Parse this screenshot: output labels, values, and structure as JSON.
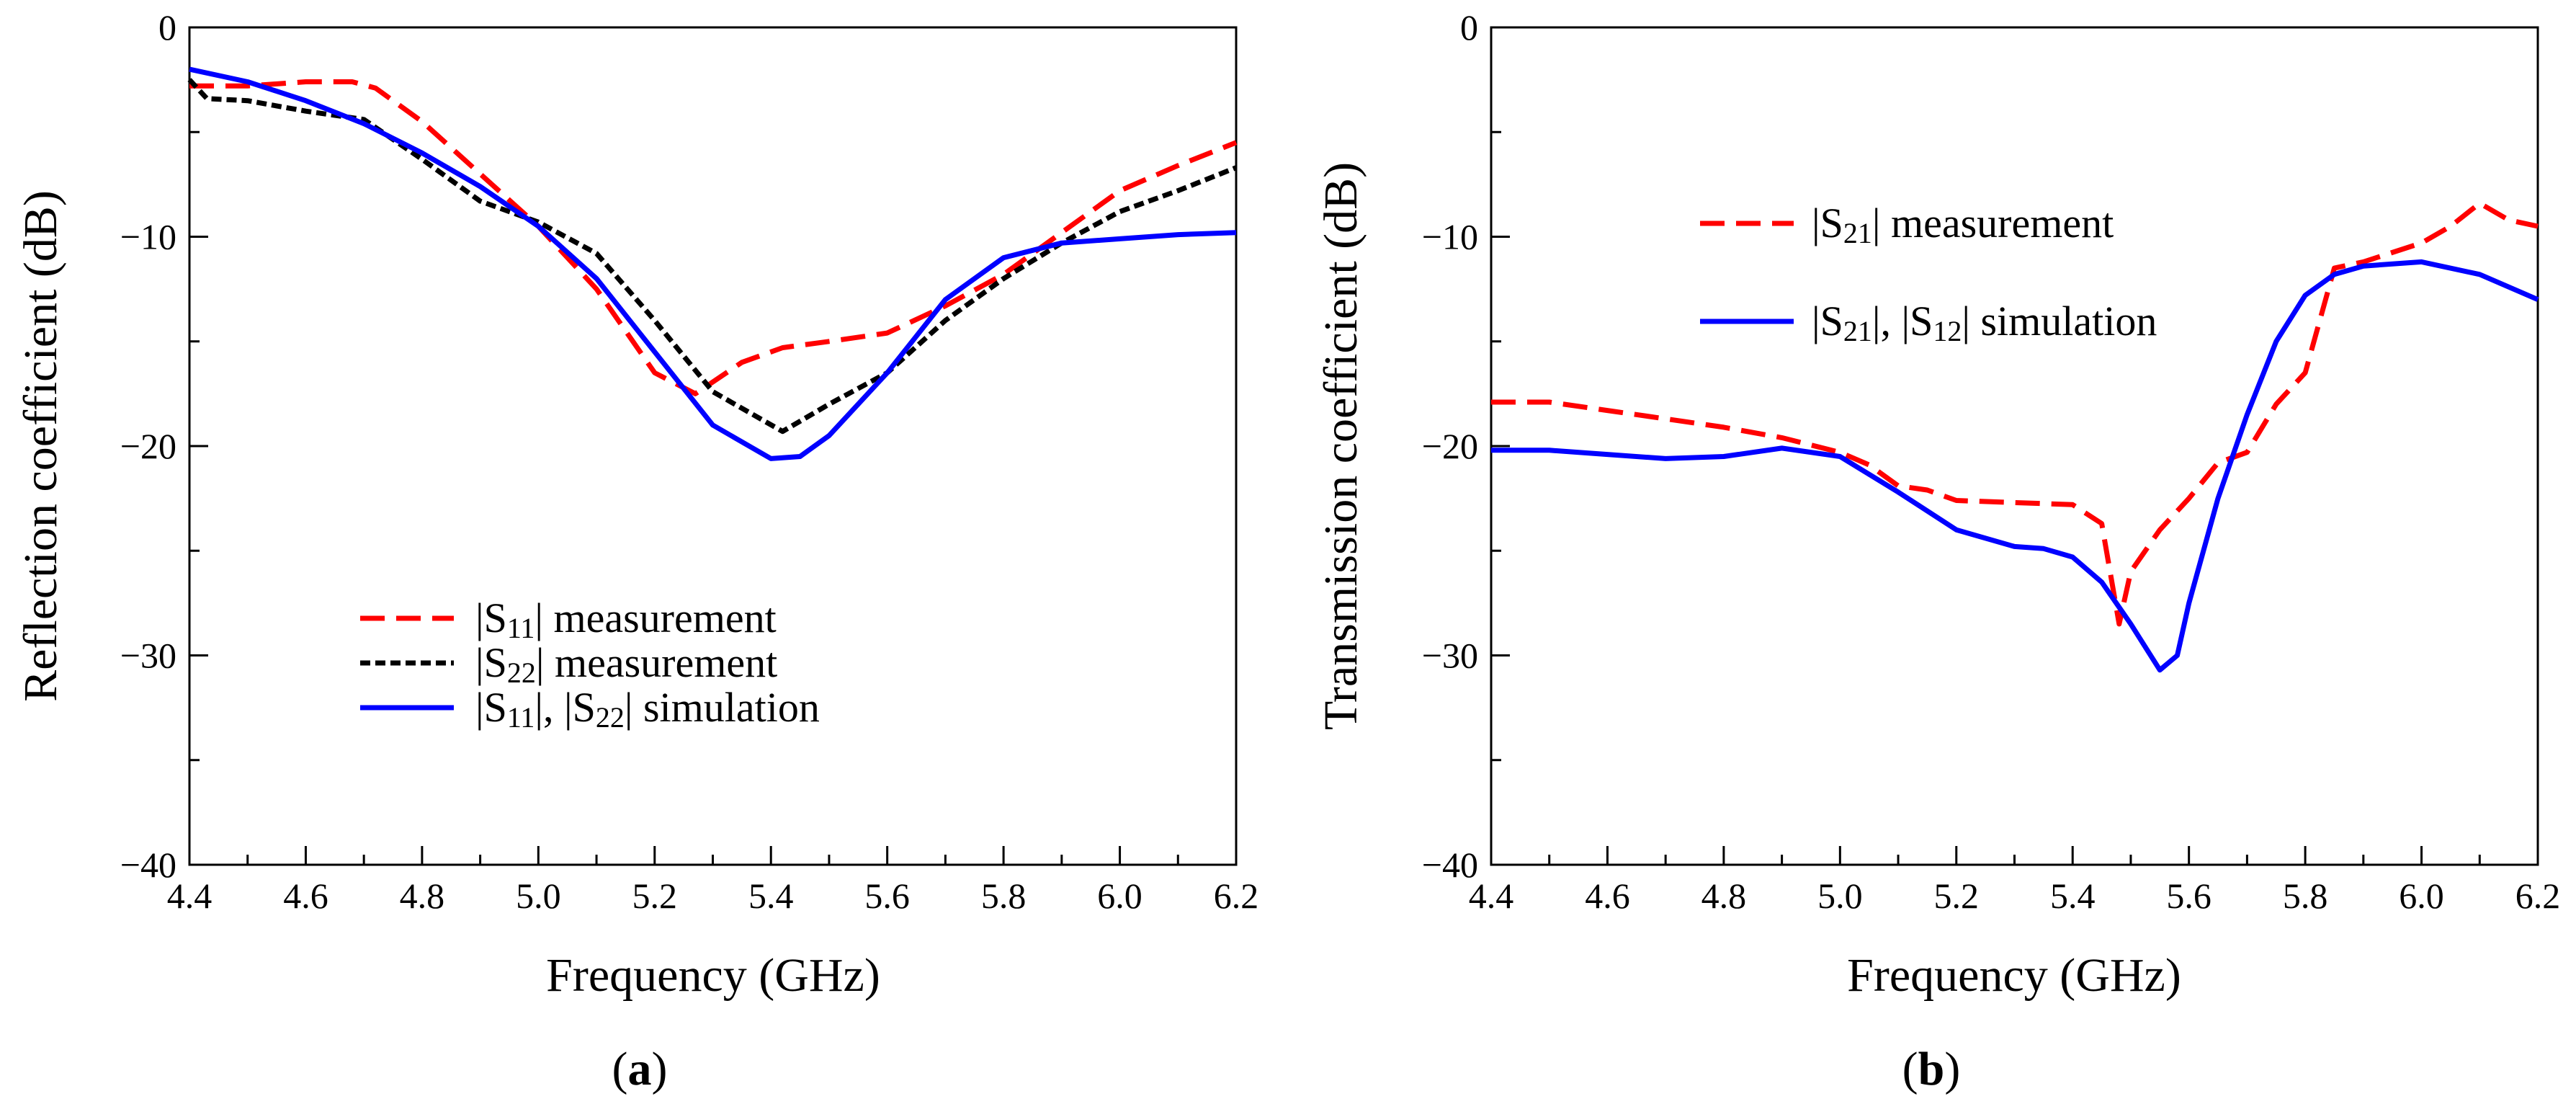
{
  "chart_data": [
    {
      "type": "line",
      "panel_label": "a",
      "xlabel": "Frequency (GHz)",
      "ylabel": "Reflection coefficient (dB)",
      "xlim": [
        4.4,
        6.2
      ],
      "ylim": [
        -40,
        0
      ],
      "xticks": [
        "4.4",
        "4.6",
        "4.8",
        "5.0",
        "5.2",
        "5.4",
        "5.6",
        "5.8",
        "6.0",
        "6.2"
      ],
      "yticks": [
        "0",
        "−10",
        "−20",
        "−30",
        "−40"
      ],
      "legend_position": "lower-center",
      "series": [
        {
          "name": "|S11| measurement",
          "name_parts": [
            "|S",
            "11",
            "| measurement"
          ],
          "color": "#ff0000",
          "dash": "dashed",
          "x": [
            4.4,
            4.5,
            4.6,
            4.68,
            4.72,
            4.8,
            4.9,
            5.0,
            5.1,
            5.2,
            5.27,
            5.35,
            5.42,
            5.5,
            5.6,
            5.7,
            5.8,
            5.9,
            6.0,
            6.1,
            6.2
          ],
          "y": [
            -2.8,
            -2.8,
            -2.6,
            -2.6,
            -2.9,
            -4.5,
            -7.0,
            -9.5,
            -12.5,
            -16.5,
            -17.5,
            -16.0,
            -15.3,
            -15.0,
            -14.6,
            -13.3,
            -11.8,
            -9.8,
            -7.8,
            -6.6,
            -5.5
          ]
        },
        {
          "name": "|S22| measurement",
          "name_parts": [
            "|S",
            "22",
            "| measurement"
          ],
          "color": "#000000",
          "dash": "dotted",
          "x": [
            4.4,
            4.43,
            4.5,
            4.6,
            4.7,
            4.8,
            4.9,
            5.0,
            5.1,
            5.2,
            5.3,
            5.42,
            5.5,
            5.6,
            5.7,
            5.8,
            5.9,
            6.0,
            6.1,
            6.2
          ],
          "y": [
            -2.5,
            -3.4,
            -3.5,
            -4.0,
            -4.4,
            -6.3,
            -8.3,
            -9.3,
            -10.8,
            -14.0,
            -17.4,
            -19.3,
            -18.0,
            -16.5,
            -14.0,
            -12.0,
            -10.3,
            -8.8,
            -7.8,
            -6.7
          ]
        },
        {
          "name": "|S11|, |S22| simulation",
          "name_parts": [
            "|S",
            "11",
            "|, |S",
            "22",
            "| simulation"
          ],
          "color": "#0000ff",
          "dash": "solid",
          "x": [
            4.4,
            4.5,
            4.6,
            4.7,
            4.8,
            4.9,
            5.0,
            5.1,
            5.2,
            5.3,
            5.4,
            5.45,
            5.5,
            5.6,
            5.7,
            5.8,
            5.9,
            6.0,
            6.1,
            6.2
          ],
          "y": [
            -2.0,
            -2.6,
            -3.5,
            -4.6,
            -6.0,
            -7.6,
            -9.5,
            -12.0,
            -15.5,
            -19.0,
            -20.6,
            -20.5,
            -19.5,
            -16.5,
            -13.0,
            -11.0,
            -10.3,
            -10.1,
            -9.9,
            -9.8
          ]
        }
      ]
    },
    {
      "type": "line",
      "panel_label": "b",
      "xlabel": "Frequency (GHz)",
      "ylabel": "Transmission coefficient (dB)",
      "xlim": [
        4.4,
        6.2
      ],
      "ylim": [
        -40,
        0
      ],
      "xticks": [
        "4.4",
        "4.6",
        "4.8",
        "5.0",
        "5.2",
        "5.4",
        "5.6",
        "5.8",
        "6.0",
        "6.2"
      ],
      "yticks": [
        "0",
        "−10",
        "−20",
        "−30",
        "−40"
      ],
      "legend_position": "upper-left",
      "series": [
        {
          "name": "|S21| measurement",
          "name_parts": [
            "|S",
            "21",
            "| measurement"
          ],
          "color": "#ff0000",
          "dash": "dashed",
          "x": [
            4.4,
            4.5,
            4.6,
            4.7,
            4.8,
            4.9,
            5.0,
            5.05,
            5.1,
            5.15,
            5.2,
            5.3,
            5.4,
            5.45,
            5.48,
            5.5,
            5.55,
            5.6,
            5.65,
            5.7,
            5.75,
            5.8,
            5.85,
            5.9,
            6.0,
            6.05,
            6.1,
            6.15,
            6.2
          ],
          "y": [
            -17.9,
            -17.9,
            -18.3,
            -18.7,
            -19.1,
            -19.6,
            -20.3,
            -20.9,
            -21.9,
            -22.1,
            -22.6,
            -22.7,
            -22.8,
            -23.7,
            -28.5,
            -26.0,
            -24.0,
            -22.5,
            -20.8,
            -20.3,
            -18.0,
            -16.5,
            -11.5,
            -11.2,
            -10.3,
            -9.5,
            -8.4,
            -9.2,
            -9.5
          ]
        },
        {
          "name": "|S21|, |S12| simulation",
          "name_parts": [
            "|S",
            "21",
            "|, |S",
            "12",
            "| simulation"
          ],
          "color": "#0000ff",
          "dash": "solid",
          "x": [
            4.4,
            4.5,
            4.6,
            4.7,
            4.8,
            4.9,
            5.0,
            5.1,
            5.2,
            5.3,
            5.35,
            5.4,
            5.45,
            5.5,
            5.55,
            5.58,
            5.6,
            5.65,
            5.7,
            5.75,
            5.8,
            5.85,
            5.9,
            6.0,
            6.1,
            6.2
          ],
          "y": [
            -20.2,
            -20.2,
            -20.4,
            -20.6,
            -20.5,
            -20.1,
            -20.5,
            -22.2,
            -24.0,
            -24.8,
            -24.9,
            -25.3,
            -26.5,
            -28.5,
            -30.7,
            -30.0,
            -27.5,
            -22.5,
            -18.5,
            -15.0,
            -12.8,
            -11.8,
            -11.4,
            -11.2,
            -11.8,
            -13.0
          ]
        }
      ]
    }
  ]
}
